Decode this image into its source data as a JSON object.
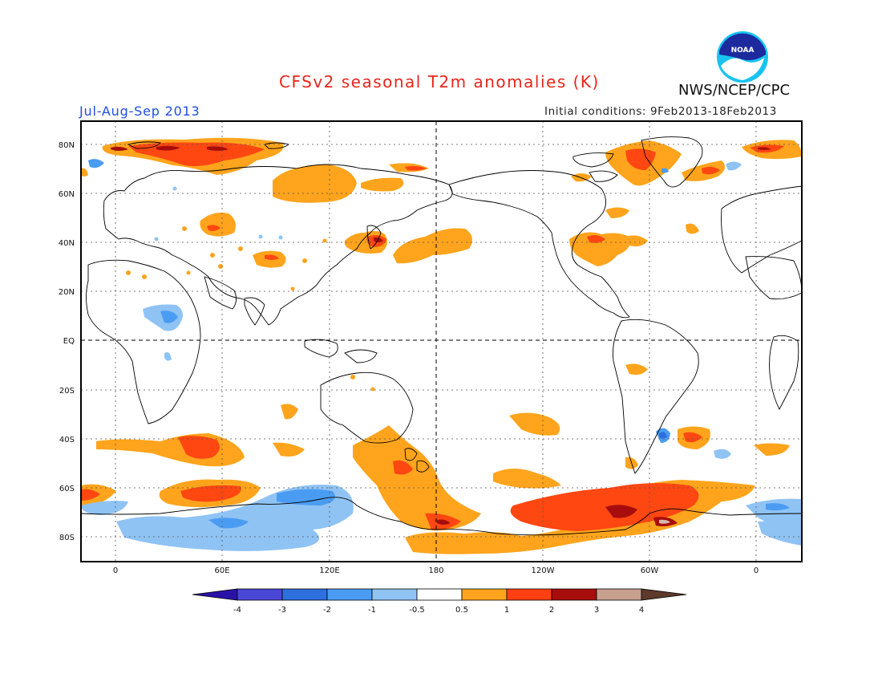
{
  "title": "CFSv2 seasonal T2m anomalies (K)",
  "organization": "NWS/NCEP/CPC",
  "logo_text": "NOAA",
  "period": "Jul-Aug-Sep 2013",
  "initial_conditions": "Initial conditions: 9Feb2013-18Feb2013",
  "lat_labels": [
    "80N",
    "60N",
    "40N",
    "20N",
    "EQ",
    "20S",
    "40S",
    "60S",
    "80S"
  ],
  "lon_labels": [
    "0",
    "60E",
    "120E",
    "180",
    "120W",
    "60W",
    "0"
  ],
  "legend": {
    "ticks": [
      "-4",
      "-3",
      "-2",
      "-1",
      "-0.5",
      "0.5",
      "1",
      "2",
      "3",
      "4"
    ],
    "colors": [
      "#2a12a8",
      "#4a47d6",
      "#2d6fde",
      "#4a9cf2",
      "#8fc3f4",
      "#ffffff",
      "#ffa41c",
      "#ff3f12",
      "#a80d0d",
      "#c8a08f",
      "#5e3a2c"
    ]
  },
  "colors": {
    "warm1": "#ffa41c",
    "warm2": "#ff4712",
    "warm3": "#a80d0d",
    "cool1": "#8fc3f4",
    "cool2": "#4a9cf2",
    "cool3": "#2d6fde"
  }
}
